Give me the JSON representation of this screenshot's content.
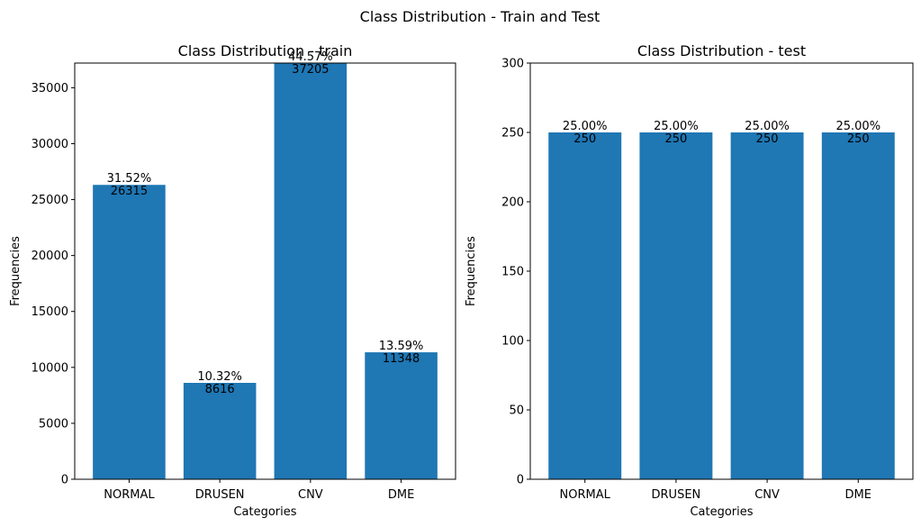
{
  "figure": {
    "suptitle": "Class Distribution - Train and Test"
  },
  "colors": {
    "bar": "#1f77b4",
    "axis": "#000000"
  },
  "chart_data": [
    {
      "type": "bar",
      "title": "Class Distribution - train",
      "xlabel": "Categories",
      "ylabel": "Frequencies",
      "categories": [
        "NORMAL",
        "DRUSEN",
        "CNV",
        "DME"
      ],
      "values": [
        26315,
        8616,
        37205,
        11348
      ],
      "percent_labels": [
        "31.52%",
        "10.32%",
        "44.57%",
        "13.59%"
      ],
      "ylim": [
        0,
        37205
      ],
      "yticks": [
        0,
        5000,
        10000,
        15000,
        20000,
        25000,
        30000,
        35000
      ],
      "grid": false
    },
    {
      "type": "bar",
      "title": "Class Distribution - test",
      "xlabel": "Categories",
      "ylabel": "Frequencies",
      "categories": [
        "NORMAL",
        "DRUSEN",
        "CNV",
        "DME"
      ],
      "values": [
        250,
        250,
        250,
        250
      ],
      "percent_labels": [
        "25.00%",
        "25.00%",
        "25.00%",
        "25.00%"
      ],
      "ylim": [
        0,
        300
      ],
      "yticks": [
        0,
        50,
        100,
        150,
        200,
        250,
        300
      ],
      "grid": false
    }
  ]
}
